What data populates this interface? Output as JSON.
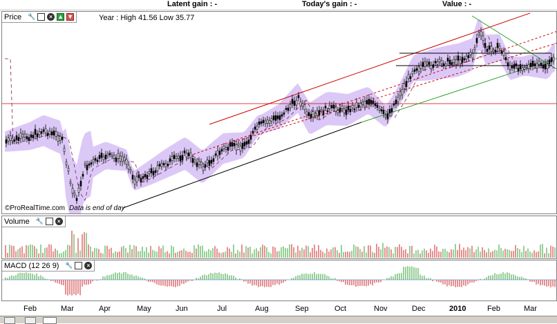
{
  "header": {
    "latent_gain": "Latent gain : -",
    "todays_gain": "Today's gain : -",
    "value": "Value : -"
  },
  "price_panel": {
    "title": "Price",
    "year_info": "Year : High 41.56 Low 35.77",
    "copyright": "©ProRealTime.com",
    "note": "Data is end of day",
    "icons": [
      "wrench-icon",
      "window-icon",
      "close-icon",
      "up-arrow-icon",
      "down-arrow-icon"
    ]
  },
  "volume_panel": {
    "title": "Volume",
    "icons": [
      "wrench-icon",
      "window-icon",
      "close-icon"
    ]
  },
  "macd_panel": {
    "title": "MACD (12 26 9)",
    "icons": [
      "wrench-icon",
      "window-icon",
      "close-icon"
    ]
  },
  "x_axis": {
    "months": [
      "Feb",
      "Mar",
      "Apr",
      "May",
      "Jun",
      "Jul",
      "Aug",
      "Sep",
      "Oct",
      "Nov",
      "Dec",
      "2010",
      "Feb",
      "Mar"
    ]
  },
  "colors": {
    "band": "#dcc8f6",
    "channel_red": "#cc0000",
    "support_green": "#2ca02c",
    "volume_up": "#2ca02c",
    "volume_down": "#cc2222"
  }
}
